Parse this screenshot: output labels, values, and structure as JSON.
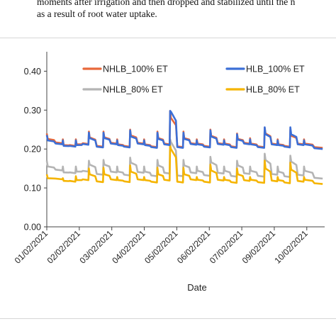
{
  "caption": {
    "line1": "moments after irrigation and then dropped and stabilized until the n",
    "line2": "as a result of root water uptake."
  },
  "chart_data": {
    "type": "line",
    "title": "",
    "xlabel": "Date",
    "ylabel": "",
    "ylim": [
      0,
      0.45
    ],
    "yticks": [
      "0.00",
      "0.10",
      "0.20",
      "0.30",
      "0.40"
    ],
    "yticks_values": [
      0,
      0.1,
      0.2,
      0.3,
      0.4
    ],
    "xlim": [
      0,
      8.55
    ],
    "xticks": [
      "01/02/2021",
      "02/02/2021",
      "03/02/2021",
      "04/02/2021",
      "05/02/2021",
      "06/02/2021",
      "07/02/2021",
      "09/02/2021",
      "10/02/2021"
    ],
    "grid": false,
    "legend_position": "top",
    "colors": {
      "NHLB_100": "#e8683a",
      "HLB_100": "#3c6fd6",
      "NHLB_80": "#b4b4b4",
      "HLB_80": "#f5b400"
    },
    "series": [
      {
        "name": "NHLB_100% ET",
        "key": "NHLB_100",
        "irrigations": [
          0.0,
          0.49,
          0.89,
          1.29,
          1.74,
          2.16,
          2.56,
          2.99,
          3.4,
          3.79,
          4.2,
          4.61,
          5.03,
          5.45,
          5.85,
          6.25,
          6.7,
          7.1,
          7.49,
          7.91
        ],
        "peaks": [
          0.24,
          0.225,
          0.225,
          0.245,
          0.245,
          0.225,
          0.25,
          0.225,
          0.245,
          0.298,
          0.245,
          0.225,
          0.25,
          0.225,
          0.24,
          0.228,
          0.255,
          0.225,
          0.25,
          0.225
        ],
        "plateaus": [
          0.226,
          0.21,
          0.212,
          0.23,
          0.23,
          0.212,
          0.235,
          0.212,
          0.228,
          0.28,
          0.228,
          0.214,
          0.234,
          0.214,
          0.226,
          0.214,
          0.24,
          0.212,
          0.234,
          0.214
        ],
        "bases": [
          0.215,
          0.208,
          0.213,
          0.206,
          0.214,
          0.206,
          0.214,
          0.205,
          0.212,
          0.205,
          0.213,
          0.206,
          0.213,
          0.205,
          0.214,
          0.205,
          0.212,
          0.206,
          0.212,
          0.203
        ]
      },
      {
        "name": "HLB_100% ET",
        "key": "HLB_100",
        "irrigations": [
          0.0,
          0.49,
          0.89,
          1.29,
          1.74,
          2.16,
          2.56,
          2.99,
          3.4,
          3.79,
          4.2,
          4.61,
          5.03,
          5.45,
          5.85,
          6.25,
          6.7,
          7.1,
          7.49,
          7.91
        ],
        "peaks": [
          0.236,
          0.222,
          0.222,
          0.242,
          0.242,
          0.222,
          0.248,
          0.222,
          0.242,
          0.298,
          0.242,
          0.222,
          0.248,
          0.222,
          0.238,
          0.225,
          0.256,
          0.222,
          0.256,
          0.222
        ],
        "plateaus": [
          0.222,
          0.208,
          0.21,
          0.228,
          0.228,
          0.21,
          0.232,
          0.21,
          0.226,
          0.296,
          0.226,
          0.212,
          0.232,
          0.212,
          0.224,
          0.212,
          0.238,
          0.21,
          0.238,
          0.212
        ],
        "bases": [
          0.212,
          0.206,
          0.211,
          0.204,
          0.212,
          0.204,
          0.212,
          0.203,
          0.21,
          0.203,
          0.211,
          0.204,
          0.211,
          0.203,
          0.212,
          0.203,
          0.21,
          0.204,
          0.21,
          0.2
        ]
      },
      {
        "name": "NHLB_80% ET",
        "key": "NHLB_80",
        "irrigations": [
          0.0,
          0.49,
          0.89,
          1.29,
          1.74,
          2.16,
          2.56,
          2.99,
          3.4,
          3.79,
          4.2,
          4.61,
          5.03,
          5.45,
          5.85,
          6.25,
          6.7,
          7.1,
          7.49,
          7.91
        ],
        "peaks": [
          0.17,
          0.155,
          0.155,
          0.17,
          0.172,
          0.155,
          0.178,
          0.155,
          0.172,
          0.225,
          0.172,
          0.155,
          0.18,
          0.155,
          0.17,
          0.155,
          0.188,
          0.155,
          0.183,
          0.155
        ],
        "plateaus": [
          0.155,
          0.14,
          0.142,
          0.16,
          0.16,
          0.142,
          0.165,
          0.142,
          0.158,
          0.218,
          0.158,
          0.144,
          0.166,
          0.144,
          0.158,
          0.144,
          0.172,
          0.142,
          0.168,
          0.144
        ],
        "bases": [
          0.145,
          0.138,
          0.142,
          0.134,
          0.14,
          0.132,
          0.139,
          0.13,
          0.137,
          0.13,
          0.138,
          0.131,
          0.137,
          0.129,
          0.136,
          0.129,
          0.134,
          0.128,
          0.132,
          0.124
        ]
      },
      {
        "name": "HLB_80% ET",
        "key": "HLB_80",
        "irrigations": [
          0.0,
          0.49,
          0.89,
          1.29,
          1.74,
          2.16,
          2.56,
          2.99,
          3.4,
          3.79,
          4.2,
          4.61,
          5.03,
          5.45,
          5.85,
          6.25,
          6.7,
          7.1,
          7.49,
          7.91
        ],
        "peaks": [
          0.135,
          0.125,
          0.13,
          0.15,
          0.152,
          0.128,
          0.158,
          0.128,
          0.152,
          0.21,
          0.152,
          0.128,
          0.16,
          0.128,
          0.15,
          0.128,
          0.17,
          0.128,
          0.165,
          0.128
        ],
        "plateaus": [
          0.125,
          0.118,
          0.12,
          0.135,
          0.135,
          0.12,
          0.142,
          0.12,
          0.135,
          0.2,
          0.135,
          0.121,
          0.145,
          0.121,
          0.135,
          0.121,
          0.15,
          0.12,
          0.147,
          0.121
        ],
        "bases": [
          0.122,
          0.116,
          0.12,
          0.115,
          0.12,
          0.115,
          0.12,
          0.114,
          0.119,
          0.114,
          0.12,
          0.114,
          0.119,
          0.113,
          0.118,
          0.113,
          0.117,
          0.112,
          0.116,
          0.11
        ]
      }
    ]
  }
}
